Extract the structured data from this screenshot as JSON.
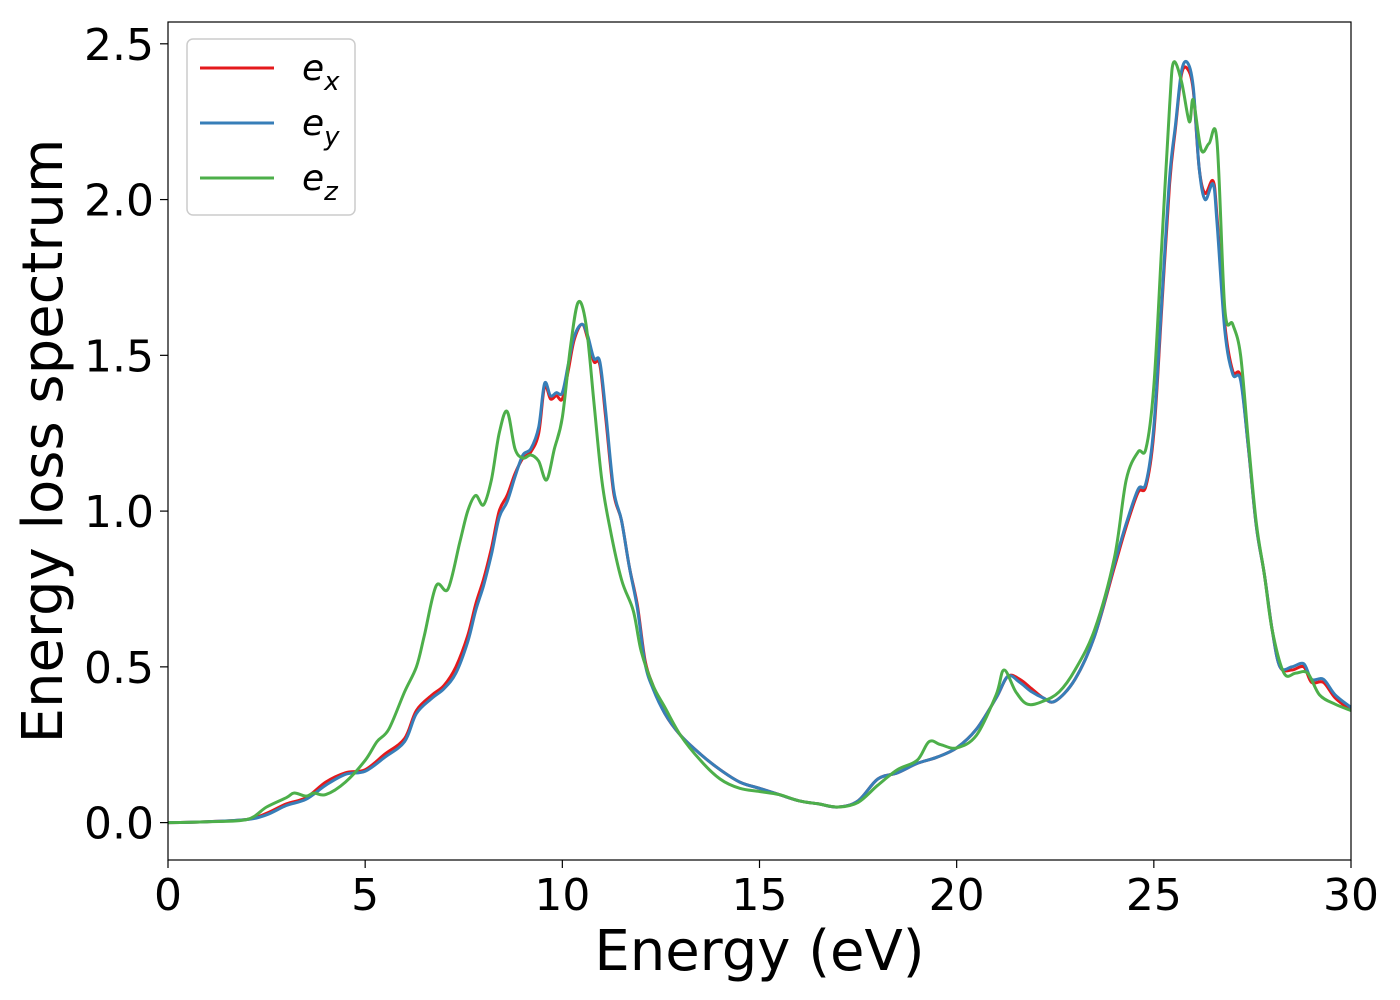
{
  "chart_data": {
    "type": "line",
    "xlabel": "Energy (eV)",
    "ylabel": "Energy loss spectrum",
    "xlim": [
      0,
      30
    ],
    "ylim": [
      -0.12,
      2.57
    ],
    "xticks": [
      "0",
      "5",
      "10",
      "15",
      "20",
      "25",
      "30"
    ],
    "yticks": [
      "0.0",
      "0.5",
      "1.0",
      "1.5",
      "2.0",
      "2.5"
    ],
    "grid": false,
    "legend_position": "top-left",
    "series": [
      {
        "name": "e",
        "subscript": "x",
        "color": "#e41a1c",
        "x": [
          0,
          1,
          2,
          2.5,
          3,
          3.5,
          4,
          4.5,
          5,
          5.5,
          6,
          6.3,
          6.7,
          7,
          7.3,
          7.6,
          7.8,
          8,
          8.2,
          8.4,
          8.6,
          8.8,
          9,
          9.2,
          9.4,
          9.55,
          9.7,
          9.85,
          10,
          10.15,
          10.3,
          10.5,
          10.65,
          10.8,
          10.95,
          11.1,
          11.3,
          11.5,
          11.7,
          11.9,
          12.1,
          12.3,
          12.6,
          13,
          13.5,
          14,
          14.5,
          15,
          15.5,
          16,
          16.5,
          17,
          17.5,
          18,
          18.5,
          19,
          19.5,
          20,
          20.5,
          21,
          21.3,
          21.6,
          21.9,
          22.2,
          22.5,
          23,
          23.5,
          24,
          24.3,
          24.6,
          24.8,
          25,
          25.2,
          25.4,
          25.55,
          25.7,
          25.85,
          26,
          26.15,
          26.3,
          26.5,
          26.6,
          26.8,
          27,
          27.2,
          27.4,
          27.6,
          27.8,
          28,
          28.2,
          28.5,
          28.8,
          29,
          29.3,
          29.6,
          30
        ],
        "y": [
          0.0,
          0.003,
          0.01,
          0.03,
          0.06,
          0.08,
          0.13,
          0.16,
          0.17,
          0.22,
          0.27,
          0.36,
          0.41,
          0.44,
          0.5,
          0.6,
          0.7,
          0.78,
          0.88,
          1.0,
          1.05,
          1.12,
          1.17,
          1.19,
          1.25,
          1.4,
          1.36,
          1.37,
          1.36,
          1.45,
          1.55,
          1.6,
          1.55,
          1.48,
          1.47,
          1.3,
          1.06,
          0.97,
          0.82,
          0.7,
          0.52,
          0.44,
          0.35,
          0.28,
          0.22,
          0.17,
          0.13,
          0.11,
          0.09,
          0.07,
          0.06,
          0.05,
          0.07,
          0.14,
          0.16,
          0.19,
          0.21,
          0.24,
          0.3,
          0.4,
          0.47,
          0.46,
          0.43,
          0.4,
          0.39,
          0.46,
          0.6,
          0.82,
          0.95,
          1.06,
          1.08,
          1.25,
          1.65,
          2.05,
          2.23,
          2.4,
          2.42,
          2.35,
          2.1,
          2.02,
          2.06,
          1.95,
          1.6,
          1.45,
          1.43,
          1.2,
          0.95,
          0.8,
          0.62,
          0.5,
          0.49,
          0.5,
          0.45,
          0.45,
          0.4,
          0.36
        ]
      },
      {
        "name": "e",
        "subscript": "y",
        "color": "#377eb8",
        "x": [
          0,
          1,
          2,
          2.5,
          3,
          3.5,
          4,
          4.5,
          5,
          5.5,
          6,
          6.3,
          6.7,
          7,
          7.3,
          7.6,
          7.8,
          8,
          8.2,
          8.4,
          8.6,
          8.8,
          9,
          9.2,
          9.4,
          9.55,
          9.7,
          9.85,
          10,
          10.15,
          10.3,
          10.5,
          10.65,
          10.8,
          10.95,
          11.1,
          11.3,
          11.5,
          11.7,
          11.9,
          12.1,
          12.3,
          12.6,
          13,
          13.5,
          14,
          14.5,
          15,
          15.5,
          16,
          16.5,
          17,
          17.5,
          18,
          18.5,
          19,
          19.5,
          20,
          20.5,
          21,
          21.3,
          21.6,
          21.9,
          22.2,
          22.5,
          23,
          23.5,
          24,
          24.3,
          24.6,
          24.8,
          25,
          25.2,
          25.4,
          25.55,
          25.7,
          25.85,
          26,
          26.15,
          26.3,
          26.5,
          26.6,
          26.8,
          27,
          27.2,
          27.4,
          27.6,
          27.8,
          28,
          28.2,
          28.5,
          28.8,
          29,
          29.3,
          29.6,
          30
        ],
        "y": [
          0.0,
          0.003,
          0.01,
          0.025,
          0.055,
          0.075,
          0.12,
          0.155,
          0.165,
          0.21,
          0.26,
          0.35,
          0.4,
          0.43,
          0.48,
          0.58,
          0.68,
          0.76,
          0.86,
          0.98,
          1.03,
          1.11,
          1.18,
          1.2,
          1.27,
          1.41,
          1.37,
          1.38,
          1.38,
          1.47,
          1.56,
          1.6,
          1.56,
          1.49,
          1.48,
          1.32,
          1.07,
          0.97,
          0.82,
          0.69,
          0.51,
          0.43,
          0.35,
          0.28,
          0.22,
          0.17,
          0.13,
          0.11,
          0.09,
          0.07,
          0.06,
          0.05,
          0.07,
          0.14,
          0.16,
          0.19,
          0.21,
          0.24,
          0.3,
          0.4,
          0.47,
          0.45,
          0.42,
          0.4,
          0.39,
          0.46,
          0.6,
          0.83,
          0.96,
          1.07,
          1.09,
          1.27,
          1.67,
          2.07,
          2.24,
          2.41,
          2.44,
          2.36,
          2.1,
          2.0,
          2.05,
          1.93,
          1.58,
          1.44,
          1.42,
          1.2,
          0.95,
          0.8,
          0.62,
          0.5,
          0.5,
          0.51,
          0.46,
          0.46,
          0.41,
          0.37
        ]
      },
      {
        "name": "e",
        "subscript": "z",
        "color": "#4daf4a",
        "x": [
          0,
          1,
          2,
          2.5,
          3,
          3.2,
          3.5,
          3.7,
          4,
          4.5,
          5,
          5.3,
          5.6,
          6,
          6.3,
          6.5,
          6.8,
          7.1,
          7.4,
          7.6,
          7.8,
          8,
          8.2,
          8.4,
          8.6,
          8.8,
          9,
          9.2,
          9.4,
          9.6,
          9.8,
          10,
          10.2,
          10.4,
          10.6,
          10.8,
          11,
          11.2,
          11.5,
          11.8,
          12,
          12.3,
          12.6,
          13,
          13.5,
          14,
          14.5,
          15,
          15.5,
          16,
          16.5,
          17,
          17.5,
          18,
          18.5,
          19,
          19.3,
          19.6,
          20,
          20.5,
          21,
          21.2,
          21.5,
          21.8,
          22.2,
          22.6,
          23,
          23.5,
          24,
          24.3,
          24.6,
          24.8,
          25,
          25.2,
          25.4,
          25.5,
          25.7,
          25.9,
          26,
          26.2,
          26.4,
          26.6,
          26.8,
          27,
          27.2,
          27.4,
          27.6,
          27.8,
          28,
          28.3,
          28.6,
          28.9,
          29.2,
          29.6,
          30
        ],
        "y": [
          0.0,
          0.003,
          0.01,
          0.05,
          0.08,
          0.095,
          0.085,
          0.095,
          0.09,
          0.13,
          0.2,
          0.26,
          0.3,
          0.42,
          0.5,
          0.6,
          0.76,
          0.75,
          0.9,
          1.0,
          1.05,
          1.02,
          1.1,
          1.25,
          1.32,
          1.2,
          1.17,
          1.18,
          1.16,
          1.1,
          1.2,
          1.3,
          1.52,
          1.67,
          1.6,
          1.35,
          1.1,
          0.95,
          0.78,
          0.68,
          0.55,
          0.44,
          0.37,
          0.28,
          0.2,
          0.14,
          0.11,
          0.1,
          0.09,
          0.07,
          0.06,
          0.05,
          0.065,
          0.12,
          0.17,
          0.2,
          0.26,
          0.25,
          0.24,
          0.28,
          0.41,
          0.49,
          0.42,
          0.38,
          0.39,
          0.42,
          0.49,
          0.62,
          0.85,
          1.1,
          1.19,
          1.2,
          1.4,
          1.85,
          2.3,
          2.44,
          2.38,
          2.25,
          2.32,
          2.16,
          2.18,
          2.19,
          1.65,
          1.6,
          1.5,
          1.22,
          0.96,
          0.8,
          0.62,
          0.48,
          0.48,
          0.48,
          0.41,
          0.38,
          0.36
        ]
      }
    ]
  }
}
